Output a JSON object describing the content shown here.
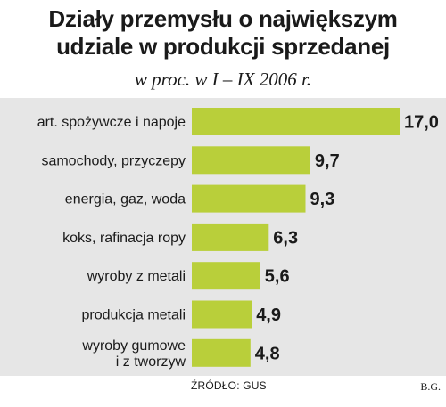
{
  "title_line1": "Działy przemysłu o największym",
  "title_line2": "udziale w produkcji sprzedanej",
  "subtitle": "w proc. w I – IX 2006 r.",
  "source": "ŹRÓDŁO: GUS",
  "author": "B.G.",
  "colors": {
    "bar": "#b9cf3a",
    "background": "#e6e6e6"
  },
  "chart_data": {
    "type": "bar",
    "orientation": "horizontal",
    "title": "Działy przemysłu o największym udziale w produkcji sprzedanej",
    "subtitle": "w proc. w I – IX 2006 r.",
    "categories": [
      [
        "art. spożywcze i napoje"
      ],
      [
        "samochody, przyczepy"
      ],
      [
        "energia, gaz, woda"
      ],
      [
        "koks, rafinacja ropy"
      ],
      [
        "wyroby z metali"
      ],
      [
        "produkcja metali"
      ],
      [
        "wyroby gumowe",
        "i z tworzyw"
      ]
    ],
    "values": [
      17.0,
      9.7,
      9.3,
      6.3,
      5.6,
      4.9,
      4.8
    ],
    "value_labels": [
      "17,0",
      "9,7",
      "9,3",
      "6,3",
      "5,6",
      "4,9",
      "4,8"
    ],
    "xlim": [
      0,
      17.0
    ],
    "grid": false,
    "legend": "none"
  }
}
